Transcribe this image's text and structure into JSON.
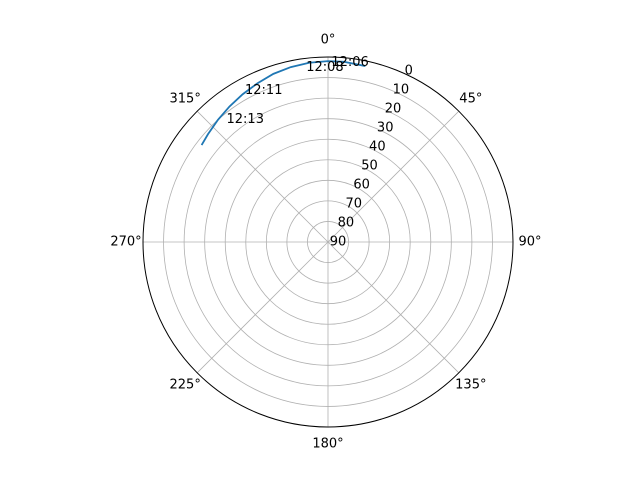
{
  "chart_data": {
    "type": "line",
    "projection": "polar",
    "theta_zero": "N",
    "theta_direction": "clockwise",
    "radial_axis": {
      "inverted": true,
      "range": [
        0,
        90
      ],
      "ticks": [
        0,
        10,
        20,
        30,
        40,
        50,
        60,
        70,
        80,
        90
      ],
      "tick_labels": [
        "0",
        "10",
        "20",
        "30",
        "40",
        "50",
        "60",
        "70",
        "80",
        "90"
      ]
    },
    "angular_axis": {
      "ticks": [
        0,
        45,
        90,
        135,
        180,
        225,
        270,
        315
      ],
      "tick_labels": [
        "0°",
        "45°",
        "90°",
        "135°",
        "180°",
        "225°",
        "270°",
        "315°"
      ]
    },
    "grid": true,
    "series": [
      {
        "color": "#1f77b4",
        "points": [
          {
            "theta": 12,
            "r": 2.5
          },
          {
            "theta": 5,
            "r": 2
          },
          {
            "theta": 0,
            "r": 2
          },
          {
            "theta": -6,
            "r": 2.3
          },
          {
            "theta": -12,
            "r": 3
          },
          {
            "theta": -18,
            "r": 4
          },
          {
            "theta": -24,
            "r": 5.5
          },
          {
            "theta": -30,
            "r": 7
          },
          {
            "theta": -36,
            "r": 8.5
          },
          {
            "theta": -42,
            "r": 10
          },
          {
            "theta": -48,
            "r": 11.5
          },
          {
            "theta": -52.5,
            "r": 12.5
          }
        ]
      }
    ],
    "annotations": [
      {
        "text": "12:06",
        "theta": 7,
        "r": 2
      },
      {
        "text": "12:08",
        "theta": -1,
        "r": 5
      },
      {
        "text": "12:11",
        "theta": -23,
        "r": 10
      },
      {
        "text": "12:13",
        "theta": -34,
        "r": 18
      }
    ]
  }
}
